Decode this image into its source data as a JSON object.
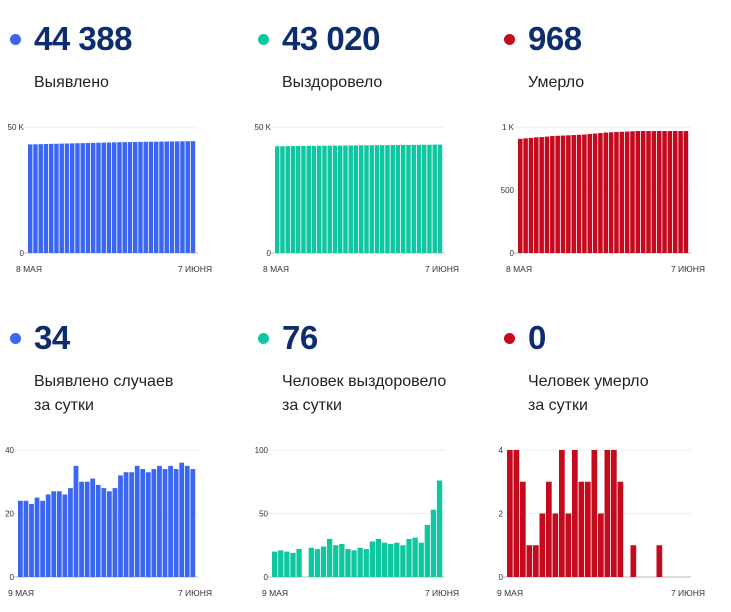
{
  "colors": {
    "blue": "#3a66f2",
    "green": "#0ec7a0",
    "red": "#c40a1c",
    "number": "#0d2e6e"
  },
  "cards": [
    {
      "value": "44 388",
      "label": [
        "Выявлено"
      ],
      "color": "#3a66f2"
    },
    {
      "value": "43 020",
      "label": [
        "Выздоровело"
      ],
      "color": "#0ec7a0"
    },
    {
      "value": "968",
      "label": [
        "Умерло"
      ],
      "color": "#c40a1c"
    },
    {
      "value": "34",
      "label": [
        "Выявлено случаев",
        "за сутки"
      ],
      "color": "#3a66f2"
    },
    {
      "value": "76",
      "label": [
        "Человек выздоровело",
        "за сутки"
      ],
      "color": "#0ec7a0"
    },
    {
      "value": "0",
      "label": [
        "Человек умерло",
        "за сутки"
      ],
      "color": "#c40a1c"
    }
  ],
  "chart_data": [
    {
      "type": "bar",
      "color": "#3a66f2",
      "x_start_label": "8 МАЯ",
      "x_end_label": "7 ИЮНЯ",
      "ylim": [
        0,
        50000
      ],
      "yticks": [
        0,
        50000
      ],
      "ytick_labels": [
        "0",
        "50 K"
      ],
      "values": [
        43100,
        43150,
        43200,
        43250,
        43300,
        43350,
        43400,
        43450,
        43500,
        43550,
        43600,
        43650,
        43700,
        43750,
        43800,
        43850,
        43900,
        43950,
        44000,
        44030,
        44060,
        44090,
        44120,
        44150,
        44180,
        44210,
        44240,
        44270,
        44300,
        44330,
        44360,
        44388
      ]
    },
    {
      "type": "bar",
      "color": "#0ec7a0",
      "x_start_label": "8 МАЯ",
      "x_end_label": "7 ИЮНЯ",
      "ylim": [
        0,
        50000
      ],
      "yticks": [
        0,
        50000
      ],
      "ytick_labels": [
        "0",
        "50 K"
      ],
      "values": [
        42350,
        42380,
        42410,
        42440,
        42470,
        42500,
        42520,
        42540,
        42560,
        42580,
        42600,
        42620,
        42640,
        42660,
        42680,
        42700,
        42720,
        42740,
        42760,
        42780,
        42800,
        42820,
        42840,
        42860,
        42880,
        42900,
        42920,
        42940,
        42960,
        42980,
        43000,
        43020
      ]
    },
    {
      "type": "bar",
      "color": "#c40a1c",
      "x_start_label": "8 МАЯ",
      "x_end_label": "7 ИЮНЯ",
      "ylim": [
        0,
        1000
      ],
      "yticks": [
        0,
        500,
        1000
      ],
      "ytick_labels": [
        "0",
        "500",
        "1 K"
      ],
      "values": [
        906,
        910,
        914,
        918,
        920,
        924,
        928,
        930,
        932,
        934,
        936,
        938,
        940,
        944,
        948,
        952,
        956,
        958,
        960,
        962,
        964,
        966,
        968,
        968,
        968,
        968,
        968,
        968,
        968,
        968,
        968,
        968
      ]
    },
    {
      "type": "bar",
      "color": "#3a66f2",
      "x_start_label": "9 МАЯ",
      "x_end_label": "7 ИЮНЯ",
      "ylim": [
        0,
        40
      ],
      "yticks": [
        0,
        20,
        40
      ],
      "ytick_labels": [
        "0",
        "20",
        "40"
      ],
      "values": [
        24,
        24,
        23,
        25,
        24,
        26,
        27,
        27,
        26,
        28,
        35,
        30,
        30,
        31,
        29,
        28,
        27,
        28,
        32,
        33,
        33,
        35,
        34,
        33,
        34,
        35,
        34,
        35,
        34,
        36,
        35,
        34
      ]
    },
    {
      "type": "bar",
      "color": "#0ec7a0",
      "x_start_label": "9 МАЯ",
      "x_end_label": "7 ИЮНЯ",
      "ylim": [
        0,
        100
      ],
      "yticks": [
        0,
        50,
        100
      ],
      "ytick_labels": [
        "0",
        "50",
        "100"
      ],
      "values": [
        20,
        21,
        20,
        19,
        22,
        0,
        23,
        22,
        24,
        30,
        25,
        26,
        22,
        21,
        23,
        22,
        28,
        30,
        27,
        26,
        27,
        25,
        30,
        31,
        27,
        41,
        53,
        76
      ]
    },
    {
      "type": "bar",
      "color": "#c40a1c",
      "x_start_label": "9 МАЯ",
      "x_end_label": "7 ИЮНЯ",
      "ylim": [
        0,
        4
      ],
      "yticks": [
        0,
        2,
        4
      ],
      "ytick_labels": [
        "0",
        "2",
        "4"
      ],
      "values": [
        4,
        4,
        3,
        1,
        1,
        2,
        3,
        2,
        4,
        2,
        4,
        3,
        3,
        4,
        2,
        4,
        4,
        3,
        0,
        1,
        0,
        0,
        0,
        1,
        0,
        0,
        0,
        0
      ]
    }
  ]
}
